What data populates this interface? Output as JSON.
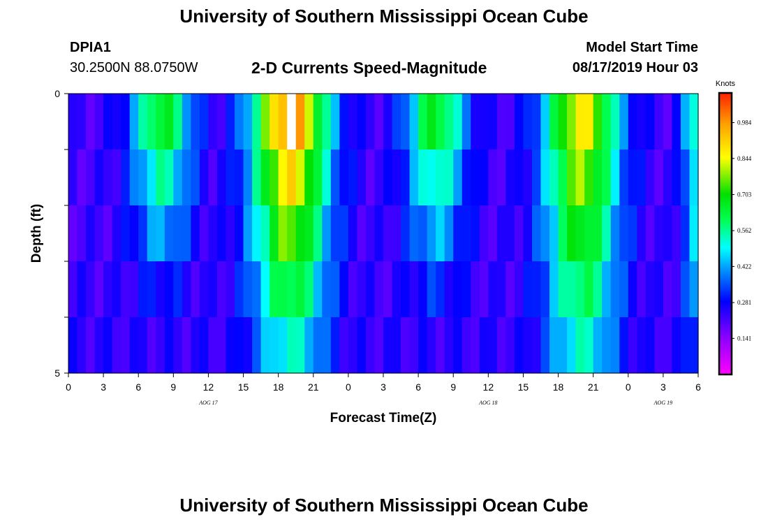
{
  "header": {
    "title": "University of Southern Mississippi Ocean Cube",
    "footer_title": "University of Southern Mississippi Ocean Cube",
    "station": "DPIA1",
    "coordinates": "30.2500N 88.0750W",
    "product": "2-D Currents Speed-Magnitude",
    "model_start_label": "Model Start Time",
    "model_start_value": "08/17/2019 Hour 03"
  },
  "chart_data": {
    "type": "heatmap",
    "xlabel": "Forecast Time(Z)",
    "ylabel": "Depth (ft)",
    "ylim": [
      0,
      5
    ],
    "y_tick_labels": [
      "0",
      "5"
    ],
    "x_tick_labels": [
      "0",
      "3",
      "6",
      "9",
      "12",
      "15",
      "18",
      "21",
      "0",
      "3",
      "6",
      "9",
      "12",
      "15",
      "18",
      "21",
      "0",
      "3",
      "6"
    ],
    "day_labels": [
      {
        "text": "AOG 17",
        "hour": 12
      },
      {
        "text": "AOG 18",
        "hour": 36
      },
      {
        "text": "AOG 19",
        "hour": 51
      }
    ],
    "time_start_hour": 0,
    "time_end_hour": 54,
    "depth_rows": 5,
    "hours_per_column": 0.75,
    "colorbar": {
      "units": "Knots",
      "min": 0,
      "max": 1.1,
      "tick_values": [
        0.141,
        0.281,
        0.422,
        0.562,
        0.703,
        0.844,
        0.984
      ],
      "tick_labels": [
        "0.141",
        "0.281",
        "0.422",
        "0.562",
        "0.703",
        "0.844",
        "0.984"
      ]
    },
    "peak_profiles": [
      {
        "center_hour": 8.0,
        "width_hours": 2.6,
        "surface_speed": 0.66,
        "bottom_speed": 0.18
      },
      {
        "center_hour": 19.0,
        "width_hours": 3.3,
        "surface_speed": 1.0,
        "bottom_speed": 0.52
      },
      {
        "center_hour": 31.5,
        "width_hours": 2.6,
        "surface_speed": 0.66,
        "bottom_speed": 0.2
      },
      {
        "center_hour": 44.0,
        "width_hours": 3.2,
        "surface_speed": 0.86,
        "bottom_speed": 0.52
      },
      {
        "center_hour": 53.8,
        "width_hours": 1.2,
        "surface_speed": 0.55,
        "bottom_speed": 0.35
      }
    ],
    "background_speed": 0.22,
    "missing_cells": [
      {
        "hour": 19.0,
        "row": 0
      }
    ]
  }
}
